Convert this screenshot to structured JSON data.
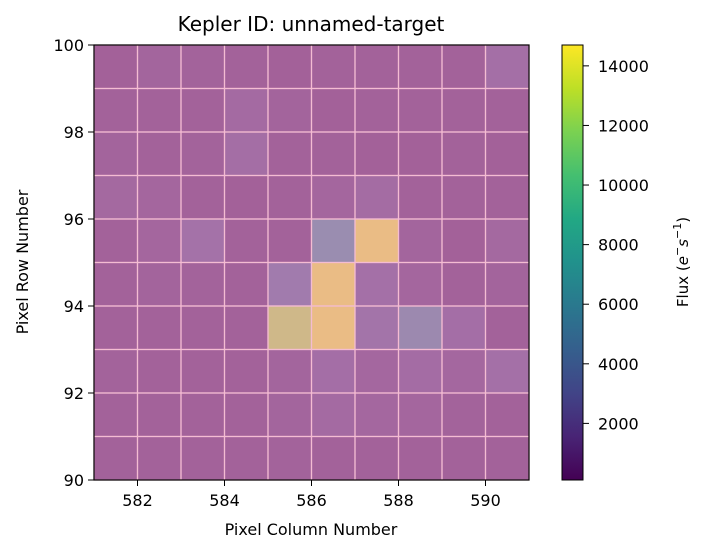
{
  "chart_data": {
    "type": "heatmap",
    "title": "Kepler ID: unnamed-target",
    "xlabel": "Pixel Column Number",
    "ylabel": "Pixel Row Number",
    "xlim": [
      581,
      591
    ],
    "ylim": [
      90,
      100
    ],
    "x_ticks": [
      "582",
      "584",
      "586",
      "588",
      "590"
    ],
    "y_ticks": [
      "90",
      "92",
      "94",
      "96",
      "98",
      "100"
    ],
    "colorbar": {
      "label_prefix": "Flux (",
      "label_main": "e",
      "label_sup1": "−",
      "label_mid": "s",
      "label_sup2": "−1",
      "label_suffix": ")",
      "range": [
        100,
        14700
      ],
      "ticks": [
        "2000",
        "4000",
        "6000",
        "8000",
        "10000",
        "12000",
        "14000"
      ],
      "colormap": "viridis"
    },
    "mask_overlay": {
      "color": "#e2a0c6",
      "opacity": 0.6,
      "grid_color": "#f4bcd2"
    },
    "columns": [
      581,
      582,
      583,
      584,
      585,
      586,
      587,
      588,
      589,
      590
    ],
    "rows_top_to_bottom": [
      99,
      98,
      97,
      96,
      95,
      94,
      93,
      92,
      91,
      90
    ],
    "values_top_to_bottom": [
      [
        200,
        600,
        400,
        300,
        200,
        300,
        300,
        300,
        300,
        1700
      ],
      [
        300,
        300,
        300,
        1200,
        500,
        200,
        300,
        300,
        300,
        300
      ],
      [
        500,
        300,
        400,
        1500,
        300,
        300,
        200,
        200,
        300,
        200
      ],
      [
        1000,
        700,
        300,
        200,
        300,
        700,
        1300,
        300,
        300,
        300
      ],
      [
        300,
        700,
        2000,
        300,
        300,
        5600,
        14500,
        600,
        200,
        1000
      ],
      [
        300,
        500,
        400,
        300,
        3100,
        14500,
        1800,
        700,
        300,
        500
      ],
      [
        300,
        300,
        300,
        300,
        13000,
        14500,
        2200,
        4900,
        1600,
        300
      ],
      [
        400,
        300,
        300,
        300,
        600,
        1600,
        800,
        1400,
        800,
        1800
      ],
      [
        300,
        300,
        300,
        300,
        600,
        1200,
        800,
        700,
        400,
        300
      ],
      [
        300,
        300,
        300,
        300,
        400,
        300,
        300,
        300,
        300,
        300
      ]
    ]
  }
}
